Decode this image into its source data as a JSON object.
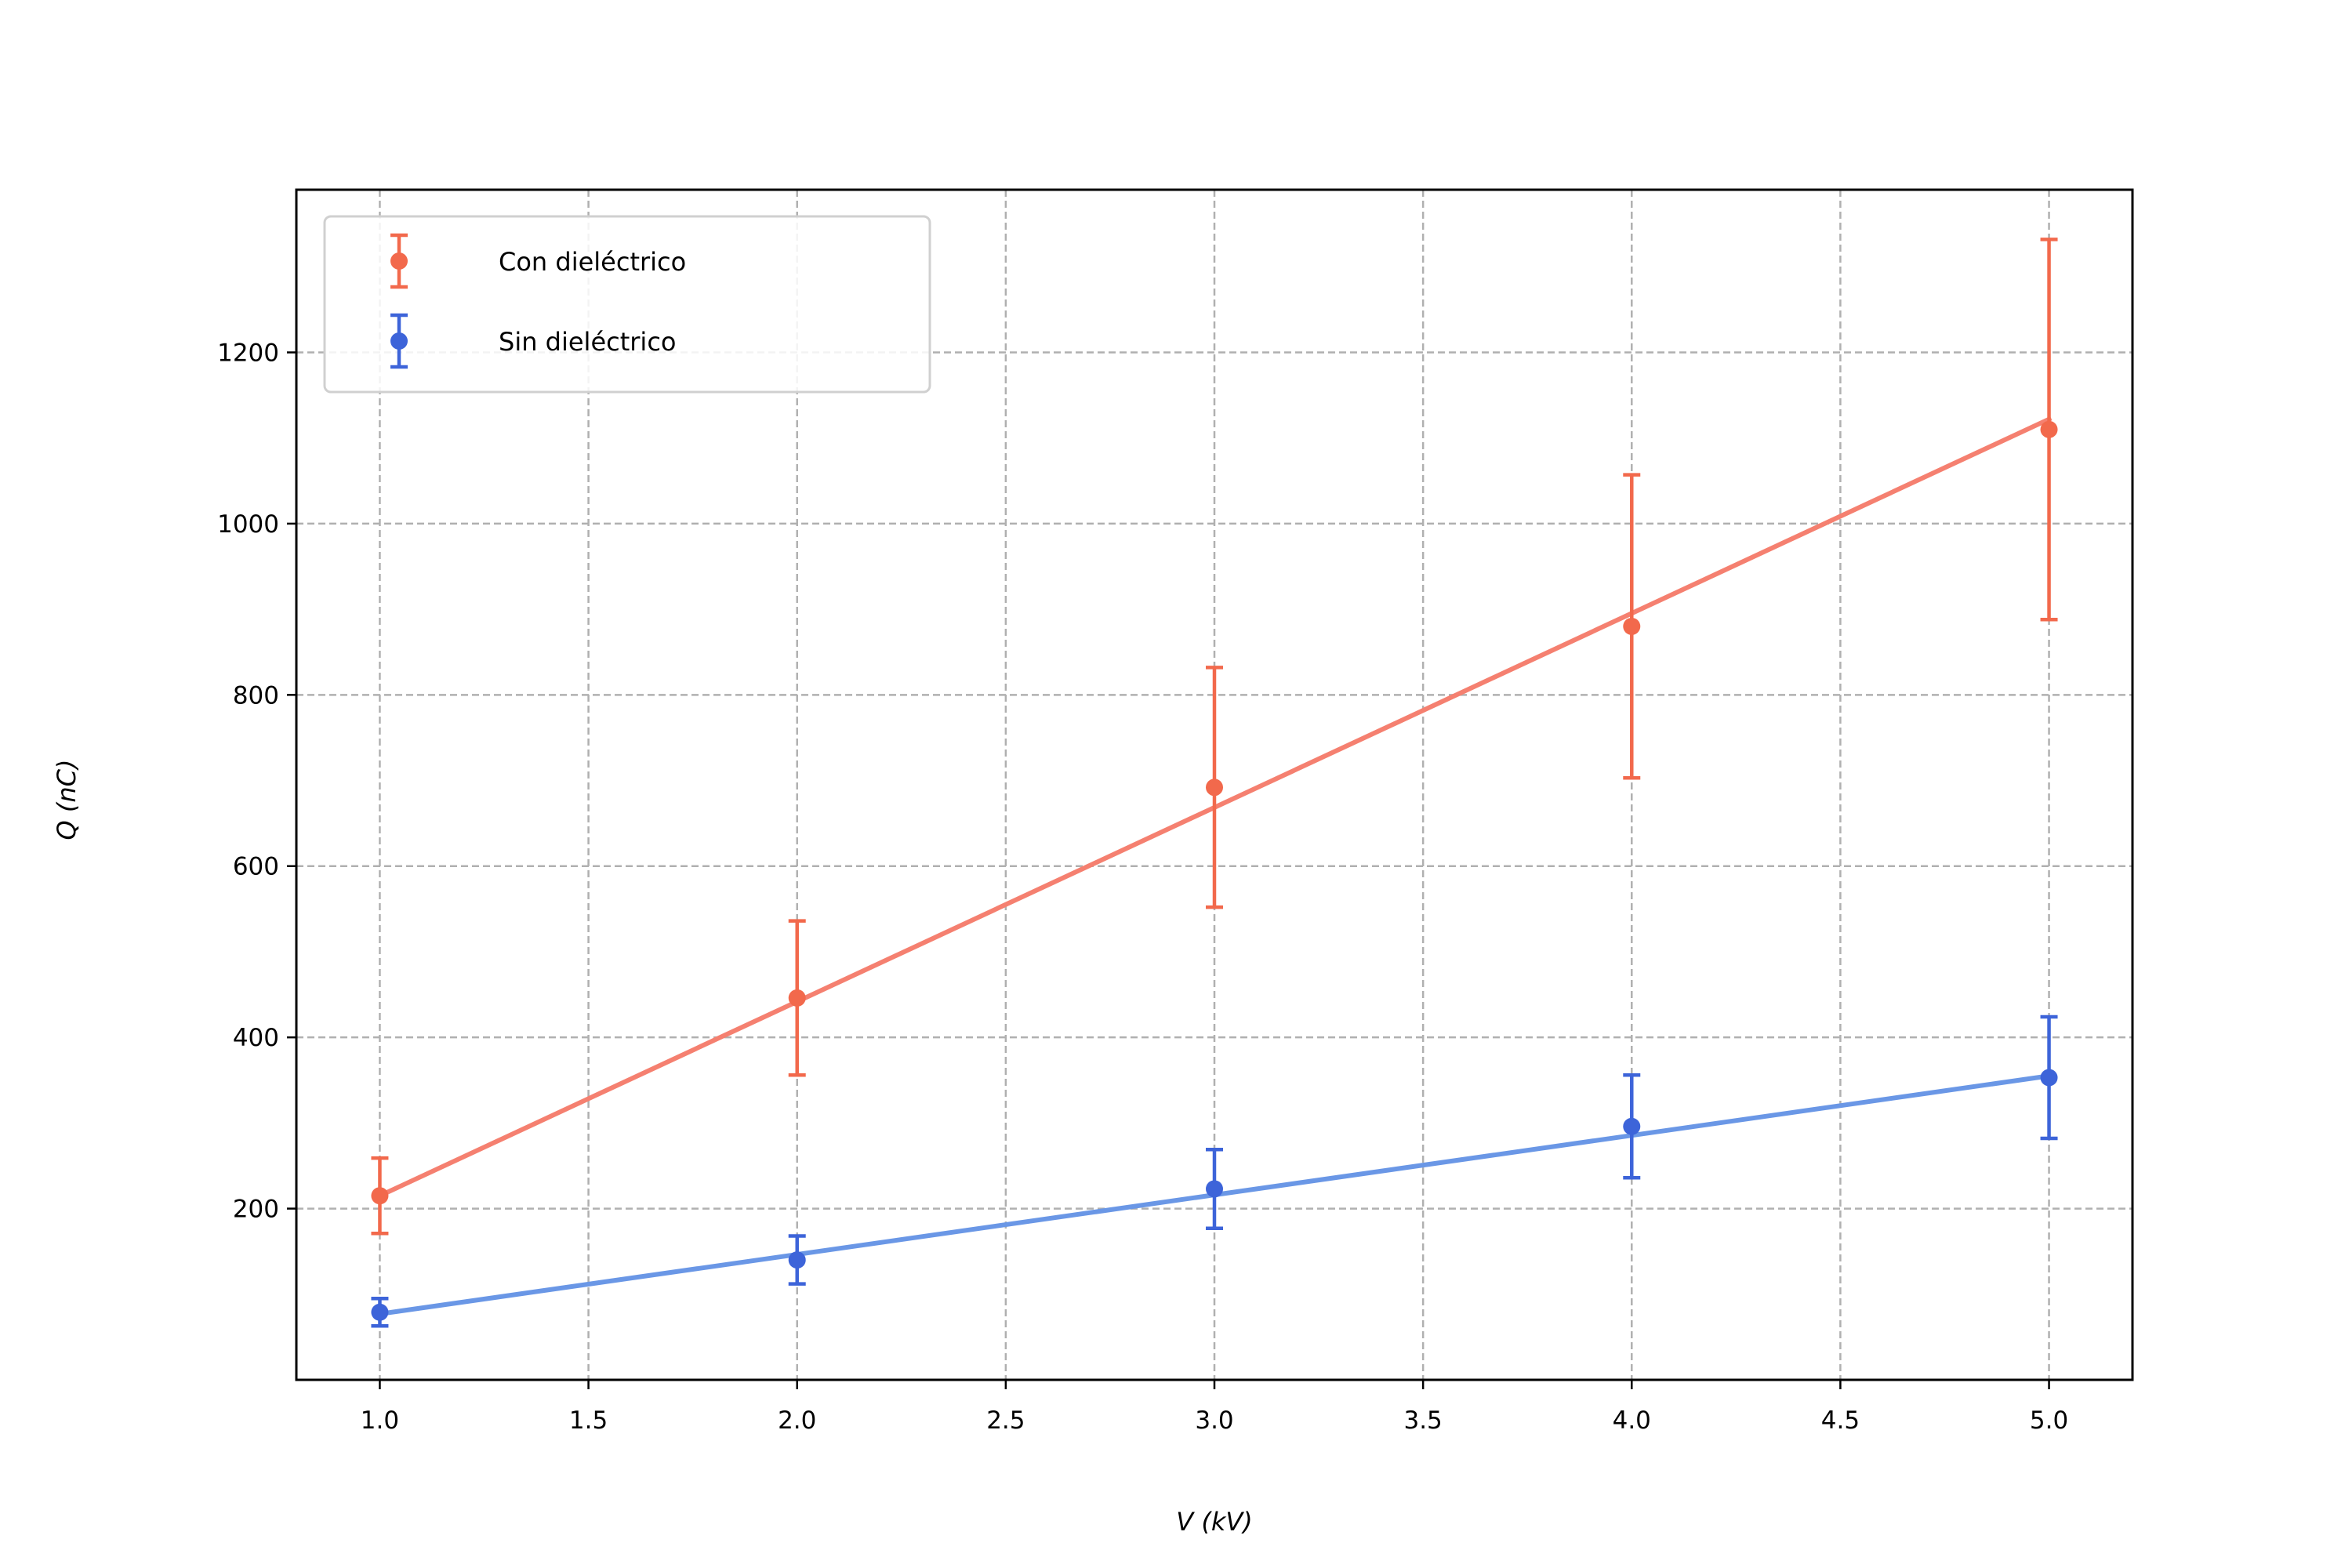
{
  "chart_data": {
    "type": "scatter",
    "xlabel": "V (kV)",
    "ylabel": "Q (nC)",
    "xlim": [
      0.8,
      5.2
    ],
    "ylim": [
      0,
      1390
    ],
    "xticks": [
      "1.0",
      "1.5",
      "2.0",
      "2.5",
      "3.0",
      "3.5",
      "4.0",
      "4.5",
      "5.0"
    ],
    "yticks": [
      "200",
      "400",
      "600",
      "800",
      "1000",
      "1200"
    ],
    "grid": true,
    "legend_position": "top-left",
    "series": [
      {
        "name": "Con dieléctrico",
        "color": "#f2694c",
        "fit_color": "#f58070",
        "x": [
          1.0,
          2.0,
          3.0,
          4.0,
          5.0
        ],
        "y": [
          215,
          446,
          692,
          880,
          1110
        ],
        "yerr": [
          44,
          90,
          140,
          177,
          222
        ],
        "fit": [
          [
            1.0,
            215
          ],
          [
            5.0,
            1122
          ]
        ]
      },
      {
        "name": "Sin dieléctrico",
        "color": "#3d64d9",
        "fit_color": "#6a97e6",
        "x": [
          1.0,
          2.0,
          3.0,
          4.0,
          5.0
        ],
        "y": [
          79,
          140,
          223,
          296,
          353
        ],
        "yerr": [
          16,
          28,
          46,
          60,
          71
        ],
        "fit": [
          [
            1.0,
            77
          ],
          [
            5.0,
            355
          ]
        ]
      }
    ]
  }
}
